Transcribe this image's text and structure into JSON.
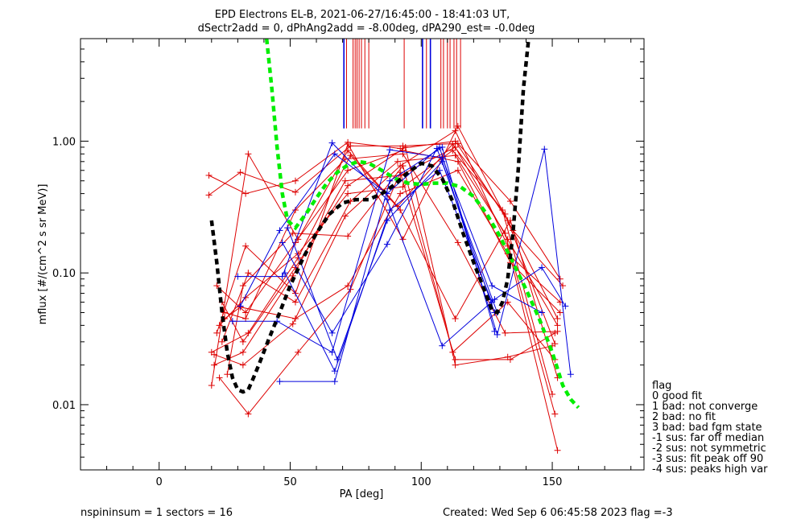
{
  "chart_data": {
    "type": "line",
    "title_line1": "EPD Electrons EL-B, 2021-06-27/16:45:00 - 18:41:03 UT,",
    "title_line2": "dSectr2add = 0, dPhAng2add = -8.00deg, dPA290_est=  -0.0deg",
    "xlabel": "PA [deg]",
    "ylabel": "mflux [#/(cm^2 s sr MeV)]",
    "xlim": [
      -30,
      185
    ],
    "ylim": [
      0.0032,
      6.0
    ],
    "yscale": "log",
    "x_ticks": [
      0,
      50,
      100,
      150
    ],
    "x_tick_labels": [
      "0",
      "50",
      "100",
      "150"
    ],
    "y_ticks": [
      0.01,
      0.1,
      1.0
    ],
    "y_tick_labels": [
      "0.01",
      "0.10",
      "1.00"
    ],
    "colors": {
      "red": "#dd0000",
      "blue": "#0000dd",
      "black": "#000000",
      "green": "#00ee00"
    },
    "red_series": [
      {
        "x": [
          19,
          33,
          52,
          72,
          92,
          113,
          133,
          152
        ],
        "y": [
          0.55,
          0.4,
          0.5,
          0.98,
          0.88,
          1.0,
          0.25,
          0.045
        ]
      },
      {
        "x": [
          19,
          31,
          52,
          73,
          93,
          114,
          134,
          153
        ],
        "y": [
          0.39,
          0.58,
          0.41,
          0.92,
          0.92,
          0.96,
          0.35,
          0.09
        ]
      },
      {
        "x": [
          20,
          34,
          53,
          72,
          91,
          112,
          132,
          151
        ],
        "y": [
          0.014,
          0.8,
          0.18,
          0.85,
          0.32,
          0.95,
          0.28,
          0.029
        ]
      },
      {
        "x": [
          21,
          32,
          51,
          71,
          92,
          113,
          133,
          152
        ],
        "y": [
          0.024,
          0.02,
          0.041,
          0.27,
          0.65,
          1.2,
          0.16,
          0.0045
        ]
      },
      {
        "x": [
          22,
          33,
          52,
          72,
          93,
          114,
          135,
          154
        ],
        "y": [
          0.035,
          0.16,
          0.07,
          0.95,
          0.18,
          1.3,
          0.21,
          0.08
        ]
      },
      {
        "x": [
          23,
          34,
          53,
          73,
          92,
          113,
          134,
          151
        ],
        "y": [
          0.016,
          0.0085,
          0.025,
          0.075,
          0.58,
          0.022,
          0.022,
          0.035
        ]
      },
      {
        "x": [
          24,
          32,
          52,
          72,
          94,
          113,
          133,
          150
        ],
        "y": [
          0.06,
          0.03,
          0.11,
          0.46,
          0.9,
          0.02,
          0.023,
          0.028
        ]
      },
      {
        "x": [
          25,
          33,
          52,
          71,
          93,
          114,
          132,
          152
        ],
        "y": [
          0.05,
          0.045,
          0.3,
          0.73,
          0.8,
          0.17,
          0.035,
          0.036
        ]
      },
      {
        "x": [
          26,
          32,
          51,
          72,
          93,
          112,
          133,
          151
        ],
        "y": [
          0.017,
          0.08,
          0.2,
          0.19,
          0.65,
          0.025,
          0.06,
          0.022
        ]
      },
      {
        "x": [
          20,
          34,
          53,
          73,
          92,
          113,
          134,
          152
        ],
        "y": [
          0.025,
          0.035,
          0.13,
          0.78,
          0.3,
          0.045,
          0.25,
          0.016
        ]
      },
      {
        "x": [
          22,
          33,
          52,
          72,
          93,
          114,
          134,
          153
        ],
        "y": [
          0.08,
          0.05,
          0.17,
          0.6,
          0.85,
          0.7,
          0.12,
          0.05
        ]
      },
      {
        "x": [
          21,
          32,
          51,
          71,
          92,
          113,
          133,
          152
        ],
        "y": [
          0.02,
          0.025,
          0.095,
          0.5,
          0.55,
          0.9,
          0.18,
          0.04
        ]
      },
      {
        "x": [
          23,
          33,
          53,
          72,
          93,
          112,
          131,
          150
        ],
        "y": [
          0.04,
          0.065,
          0.14,
          0.4,
          0.45,
          0.85,
          0.3,
          0.012
        ]
      },
      {
        "x": [
          24,
          34,
          52,
          73,
          91,
          113,
          132,
          151
        ],
        "y": [
          0.03,
          0.1,
          0.06,
          0.35,
          0.7,
          0.78,
          0.2,
          0.0085
        ]
      },
      {
        "x": [
          25,
          31,
          52,
          72,
          92,
          114,
          133,
          153
        ],
        "y": [
          0.045,
          0.055,
          0.045,
          0.08,
          0.4,
          0.6,
          0.14,
          0.06
        ]
      }
    ],
    "blue_series": [
      {
        "x": [
          30,
          47,
          66,
          87,
          108,
          128,
          146,
          155
        ],
        "y": [
          0.094,
          0.094,
          0.97,
          0.36,
          0.028,
          0.063,
          0.11,
          0.056
        ]
      },
      {
        "x": [
          31,
          46,
          67,
          87,
          107,
          129,
          147,
          157
        ],
        "y": [
          0.056,
          0.21,
          0.8,
          0.4,
          0.9,
          0.034,
          0.87,
          0.017
        ]
      },
      {
        "x": [
          28,
          45,
          66,
          88,
          108,
          127,
          146
        ],
        "y": [
          0.043,
          0.043,
          0.025,
          0.86,
          0.75,
          0.08,
          0.05
        ]
      },
      {
        "x": [
          46,
          67,
          88,
          108,
          128
        ],
        "y": [
          0.015,
          0.015,
          0.5,
          0.9,
          0.036
        ]
      },
      {
        "x": [
          47,
          66,
          87,
          106,
          129
        ],
        "y": [
          0.17,
          0.035,
          0.165,
          0.88,
          0.05
        ]
      },
      {
        "x": [
          48,
          67,
          88,
          107,
          127
        ],
        "y": [
          0.1,
          0.018,
          0.3,
          0.6,
          0.06
        ]
      },
      {
        "x": [
          49,
          68,
          87,
          108,
          128
        ],
        "y": [
          0.22,
          0.022,
          0.25,
          0.7,
          0.05
        ]
      }
    ],
    "black_fit": {
      "x": [
        20,
        22,
        24,
        26,
        28,
        30,
        32,
        34,
        36,
        38,
        42,
        46,
        50,
        55,
        60,
        65,
        70,
        75,
        80,
        85,
        90,
        95,
        100,
        104,
        108,
        112,
        116,
        120,
        124,
        127,
        129,
        131,
        133,
        135,
        137,
        139,
        141
      ],
      "y": [
        0.25,
        0.12,
        0.05,
        0.025,
        0.016,
        0.013,
        0.0125,
        0.013,
        0.016,
        0.02,
        0.032,
        0.05,
        0.08,
        0.13,
        0.2,
        0.28,
        0.34,
        0.36,
        0.36,
        0.4,
        0.47,
        0.58,
        0.68,
        0.65,
        0.52,
        0.35,
        0.2,
        0.12,
        0.075,
        0.052,
        0.05,
        0.06,
        0.09,
        0.2,
        0.6,
        2.5,
        6.0
      ]
    },
    "green_fit": {
      "x": [
        41,
        43,
        45,
        47,
        49,
        52,
        56,
        60,
        64,
        68,
        72,
        76,
        80,
        85,
        90,
        95,
        100,
        105,
        110,
        115,
        120,
        125,
        130,
        135,
        140,
        145,
        150,
        154,
        157,
        160
      ],
      "y": [
        6.0,
        2.5,
        0.9,
        0.4,
        0.25,
        0.22,
        0.28,
        0.37,
        0.48,
        0.58,
        0.66,
        0.7,
        0.68,
        0.6,
        0.52,
        0.48,
        0.47,
        0.48,
        0.48,
        0.45,
        0.38,
        0.28,
        0.19,
        0.12,
        0.075,
        0.045,
        0.025,
        0.014,
        0.011,
        0.0095
      ]
    },
    "vertical_markers": [
      {
        "x": 70.5,
        "color": "blue"
      },
      {
        "x": 71.5,
        "color": "red"
      },
      {
        "x": 74,
        "color": "red"
      },
      {
        "x": 74.8,
        "color": "red"
      },
      {
        "x": 75.5,
        "color": "red"
      },
      {
        "x": 76.3,
        "color": "red"
      },
      {
        "x": 77.2,
        "color": "red"
      },
      {
        "x": 78.5,
        "color": "red"
      },
      {
        "x": 80,
        "color": "red"
      },
      {
        "x": 93.5,
        "color": "red"
      },
      {
        "x": 100.5,
        "color": "blue"
      },
      {
        "x": 102,
        "color": "red"
      },
      {
        "x": 103.5,
        "color": "blue"
      },
      {
        "x": 107.5,
        "color": "red"
      },
      {
        "x": 108.5,
        "color": "red"
      },
      {
        "x": 110,
        "color": "red"
      },
      {
        "x": 111,
        "color": "red"
      },
      {
        "x": 112.5,
        "color": "red"
      },
      {
        "x": 113.5,
        "color": "red"
      },
      {
        "x": 115,
        "color": "red"
      }
    ],
    "marker_y_bottom": 1.25,
    "legend": {
      "title": "flag",
      "entries": [
        " 0 good fit",
        " 1 bad: not converge",
        " 2 bad: no fit",
        " 3 bad: bad fgm state",
        "-1 sus: far off median",
        "-2 sus: not symmetric",
        "-3 sus: fit peak off 90",
        "-4 sus: peaks high var"
      ]
    },
    "footer_left": "nspininsum =  1  sectors = 16",
    "footer_right": "Created: Wed Sep  6 06:45:58 2023   flag =-3"
  }
}
